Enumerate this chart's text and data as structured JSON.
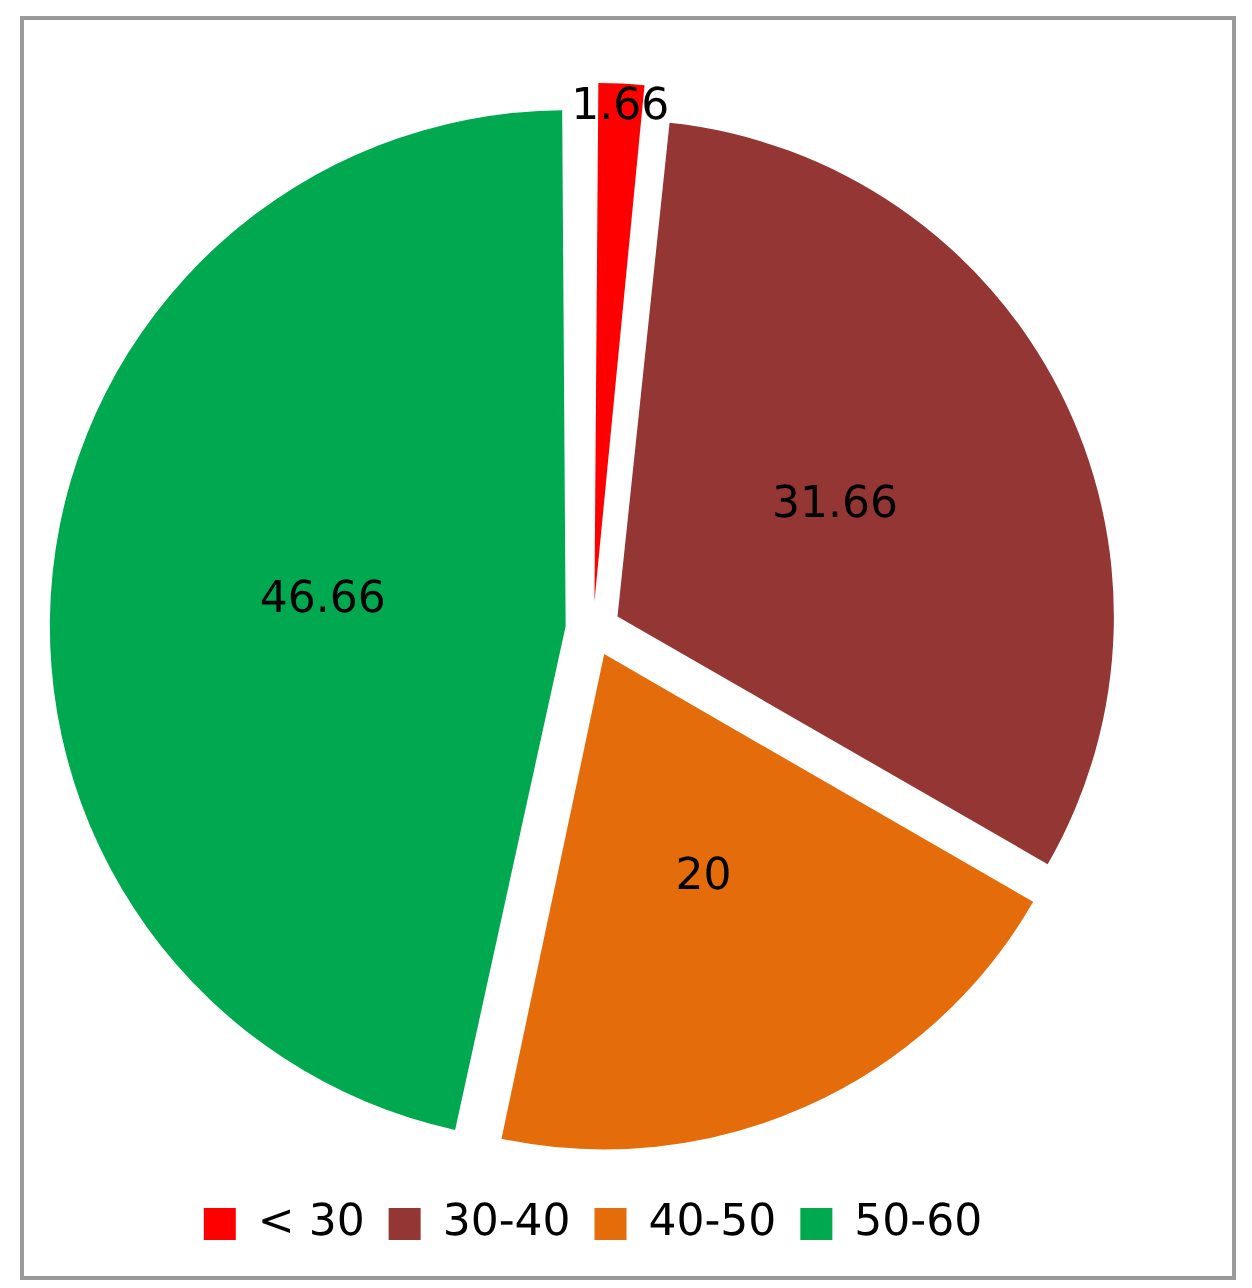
{
  "chart_data": {
    "type": "pie",
    "categories": [
      "< 30",
      "30-40",
      "40-50",
      "50-60"
    ],
    "values": [
      1.66,
      31.66,
      20,
      46.66
    ],
    "colors": [
      "#ff0000",
      "#943634",
      "#e46c0a",
      "#00a94f"
    ],
    "data_labels": true,
    "legend": "bottom"
  }
}
